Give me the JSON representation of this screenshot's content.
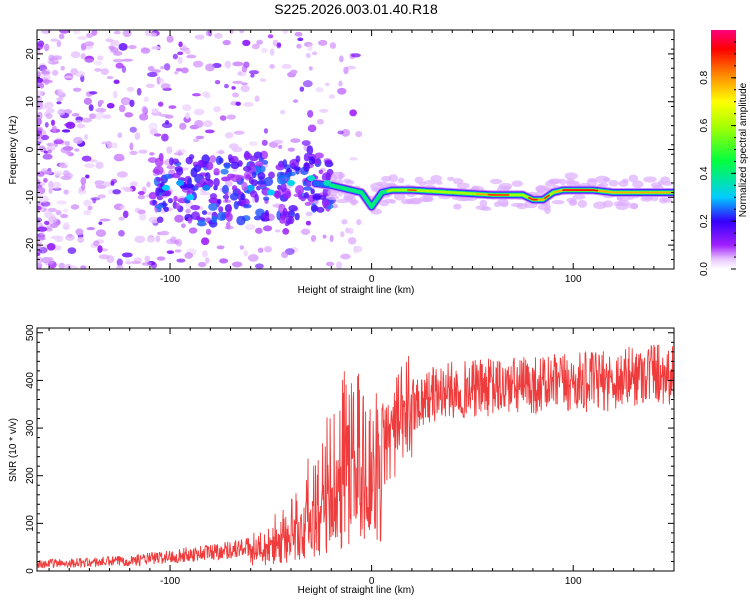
{
  "title": "S225.2026.003.01.40.R18",
  "colors": {
    "snr_line": "#ef3b3b",
    "axis": "#000000",
    "background": "#ffffff"
  },
  "chart_data": [
    {
      "type": "heatmap",
      "title": "S225.2026.003.01.40.R18",
      "xlabel": "Height of straight line (km)",
      "ylabel": "Frequency (Hz)",
      "xlim": [
        -166,
        150
      ],
      "ylim": [
        -25,
        25
      ],
      "x_ticks": [
        -100,
        0,
        100
      ],
      "x_tick_labels": [
        "-100",
        "0",
        "100"
      ],
      "y_ticks": [
        -20,
        -10,
        0,
        10,
        20
      ],
      "y_tick_labels": [
        "-20",
        "-10",
        "0",
        "10",
        "20"
      ],
      "colorbar": {
        "label": "Normalized spectral amplitude",
        "range": [
          0,
          1
        ],
        "ticks": [
          0.0,
          0.2,
          0.4,
          0.6,
          0.8
        ],
        "tick_labels": [
          "0.0",
          "0.2",
          "0.4",
          "0.6",
          "0.8"
        ],
        "colormap": [
          "#ffffff",
          "#cc33ff",
          "#6a00ff",
          "#0000ff",
          "#00ffff",
          "#00ff00",
          "#ffff00",
          "#ff7f00",
          "#ff0000",
          "#ff0080"
        ]
      },
      "ridge": {
        "description": "dominant spectral line frequency vs height",
        "x": [
          -100,
          -80,
          -60,
          -40,
          -30,
          -20,
          -10,
          -5,
          0,
          5,
          10,
          20,
          40,
          60,
          75,
          80,
          85,
          90,
          95,
          100,
          110,
          120,
          130,
          140,
          148
        ],
        "y": [
          -8,
          -9,
          -8,
          -8,
          -7,
          -7.5,
          -8.5,
          -9,
          -12,
          -9,
          -8.5,
          -8.5,
          -9,
          -9.5,
          -9.5,
          -10.5,
          -10.5,
          -9,
          -8.5,
          -8.5,
          -8.5,
          -9,
          -9,
          -9,
          -9
        ],
        "peak_amplitude": [
          0.25,
          0.3,
          0.3,
          0.3,
          0.35,
          0.4,
          0.55,
          0.5,
          0.4,
          0.5,
          0.7,
          0.75,
          0.75,
          0.8,
          0.7,
          0.8,
          0.8,
          0.75,
          0.9,
          0.9,
          0.9,
          0.85,
          0.85,
          0.85,
          0.8
        ]
      }
    },
    {
      "type": "line",
      "xlabel": "Height of straight line (km)",
      "ylabel": "SNR (10 * v/v)",
      "xlim": [
        -166,
        150
      ],
      "ylim": [
        0,
        510
      ],
      "x_ticks": [
        -100,
        0,
        100
      ],
      "x_tick_labels": [
        "-100",
        "0",
        "100"
      ],
      "y_ticks": [
        0,
        100,
        200,
        300,
        400,
        500
      ],
      "y_tick_labels": [
        "0",
        "100",
        "200",
        "300",
        "400",
        "500"
      ],
      "series": [
        {
          "name": "SNR",
          "x": [
            -166,
            -140,
            -120,
            -100,
            -80,
            -60,
            -50,
            -40,
            -30,
            -20,
            -15,
            -10,
            -5,
            0,
            5,
            10,
            15,
            20,
            30,
            40,
            60,
            80,
            100,
            120,
            140,
            150
          ],
          "y": [
            15,
            18,
            22,
            30,
            40,
            50,
            60,
            90,
            140,
            190,
            230,
            280,
            220,
            240,
            260,
            290,
            320,
            350,
            370,
            380,
            385,
            390,
            395,
            400,
            420,
            410
          ]
        }
      ]
    }
  ]
}
